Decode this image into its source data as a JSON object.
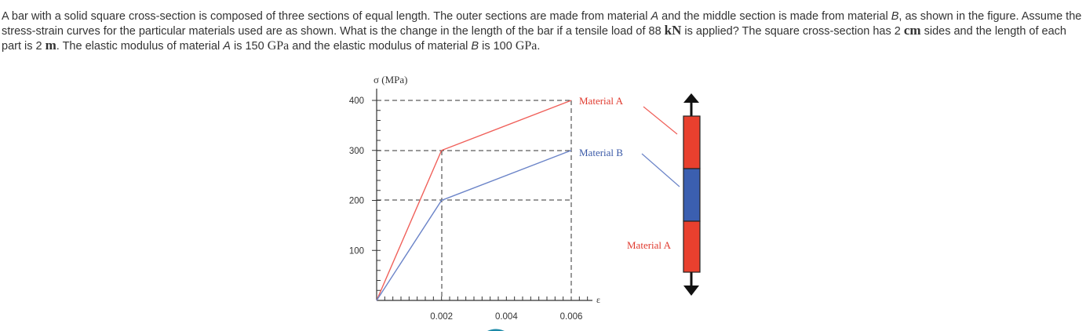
{
  "problem": {
    "p1": "A bar with a solid square cross-section is composed of three sections of equal length. The outer sections are made from material ",
    "matA1": "A",
    "p2": " and the middle section is made from material ",
    "matB1": "B",
    "p3": ", as shown in the figure. Assume the stress-strain curves for the particular materials used are as shown. What is the change in the length of the bar if a tensile load of 88 ",
    "unit_kN": "kN",
    "p4": " is applied? The square cross-section has 2 ",
    "unit_cm": "cm",
    "p5": " sides and the length of each part is 2 ",
    "unit_m": "m",
    "p6": ". The elastic modulus of material ",
    "matA2": "A",
    "p7": " is 150 ",
    "unit_gpa1": "GPa",
    "p8": " and the elastic modulus of material ",
    "matB2": "B",
    "p9": " is 100 ",
    "unit_gpa2": "GPa",
    "p10": "."
  },
  "figure": {
    "y_axis_label": "σ (MPa)",
    "x_axis_label": "ε",
    "label_material_a_top": "Material A",
    "label_material_b": "Material B",
    "label_material_a_bottom": "Material A",
    "colors": {
      "material_a": "#f0605a",
      "material_b": "#6b84c8",
      "bar_a_fill": "#e8402e",
      "bar_b_fill": "#3b5fb0"
    }
  },
  "chart_data": {
    "type": "line",
    "xlabel": "ε",
    "ylabel": "σ (MPa)",
    "xlim": [
      0,
      0.006
    ],
    "ylim": [
      0,
      400
    ],
    "x_ticks": [
      "0.002",
      "0.004",
      "0.006"
    ],
    "y_ticks": [
      "100",
      "200",
      "300",
      "400"
    ],
    "series": [
      {
        "name": "Material A",
        "color": "#f0605a",
        "points": [
          [
            0,
            0
          ],
          [
            0.002,
            300
          ],
          [
            0.006,
            400
          ]
        ]
      },
      {
        "name": "Material B",
        "color": "#6b84c8",
        "points": [
          [
            0,
            0
          ],
          [
            0.002,
            200
          ],
          [
            0.006,
            300
          ]
        ]
      }
    ]
  }
}
